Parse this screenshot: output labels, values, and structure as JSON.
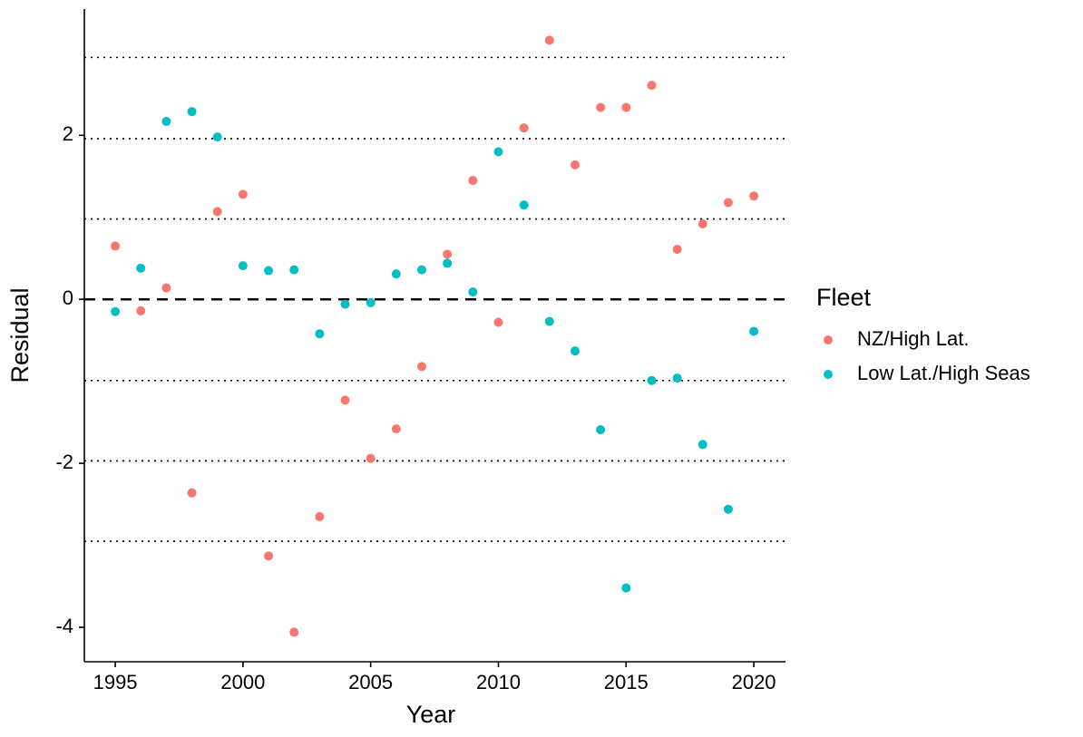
{
  "chart_data": {
    "type": "scatter",
    "x_label": "Year",
    "y_label": "Residual",
    "legend_title": "Fleet",
    "x": [
      1995,
      1996,
      1997,
      1998,
      1999,
      2000,
      2001,
      2002,
      2003,
      2004,
      2005,
      2006,
      2007,
      2008,
      2009,
      2010,
      2011,
      2012,
      2013,
      2014,
      2015,
      2016,
      2017,
      2018,
      2019,
      2020
    ],
    "series": [
      {
        "name": "NZ/High Lat.",
        "color": "#F8766D",
        "values": [
          0.65,
          -0.14,
          0.14,
          -2.36,
          1.07,
          1.28,
          -3.13,
          -4.06,
          -2.65,
          -1.23,
          -1.94,
          -1.58,
          -0.82,
          0.55,
          1.45,
          -0.28,
          2.09,
          3.16,
          1.64,
          2.34,
          2.34,
          2.61,
          0.61,
          0.92,
          1.18,
          1.26
        ]
      },
      {
        "name": "Low Lat./High Seas",
        "color": "#00BFC4",
        "values": [
          -0.15,
          0.38,
          2.17,
          2.29,
          1.98,
          0.41,
          0.35,
          0.36,
          -0.42,
          -0.06,
          -0.04,
          0.31,
          0.36,
          0.44,
          0.09,
          1.8,
          1.15,
          -0.27,
          -0.63,
          -1.59,
          -3.52,
          -0.99,
          -0.96,
          -1.77,
          -2.56,
          -0.39
        ]
      }
    ],
    "xlim": [
      1993.79,
      2021.24
    ],
    "ylim": [
      -4.42,
      3.54
    ],
    "xticks": [
      1995,
      2000,
      2005,
      2010,
      2015,
      2020
    ],
    "yticks": [
      -4,
      -2,
      0,
      2
    ],
    "reference_line": 0,
    "dotted_lines": [
      2.95,
      1.96,
      0.98,
      -0.99,
      -1.97,
      -2.95
    ],
    "legend": "right"
  }
}
